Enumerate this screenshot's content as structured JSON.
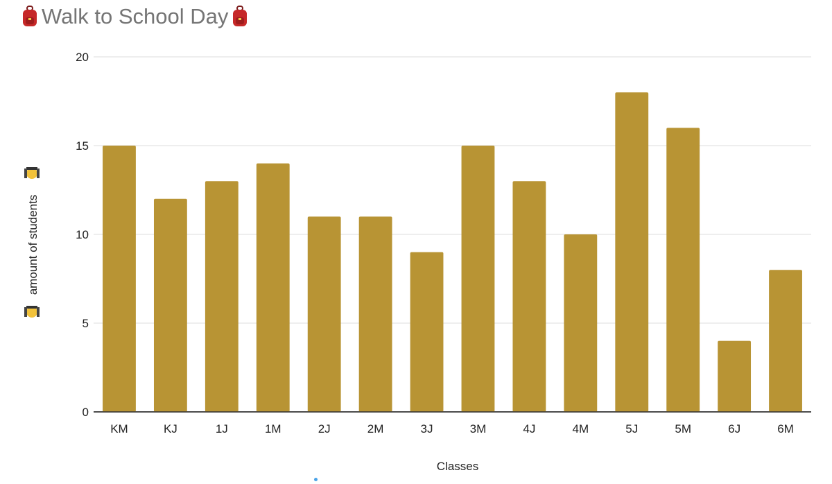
{
  "title": {
    "text": "Walk to School Day",
    "emoji_icon": "backpack-icon"
  },
  "colors": {
    "bar": "#b89434",
    "grid": "#dcdcdc",
    "baseline": "#333333",
    "title": "#757575",
    "text": "#222222"
  },
  "chart_data": {
    "type": "bar",
    "title": "Walk to School Day",
    "xlabel": "Classes",
    "ylabel": "amount of students",
    "ylabel_icon": "student-emoji-icon",
    "categories": [
      "KM",
      "KJ",
      "1J",
      "1M",
      "2J",
      "2M",
      "3J",
      "3M",
      "4J",
      "4M",
      "5J",
      "5M",
      "6J",
      "6M"
    ],
    "values": [
      15,
      12,
      13,
      14,
      11,
      11,
      9,
      15,
      13,
      10,
      18,
      16,
      4,
      8
    ],
    "ylim": [
      0,
      20
    ],
    "yticks": [
      0,
      5,
      10,
      15,
      20
    ],
    "grid": true,
    "legend": "none"
  }
}
